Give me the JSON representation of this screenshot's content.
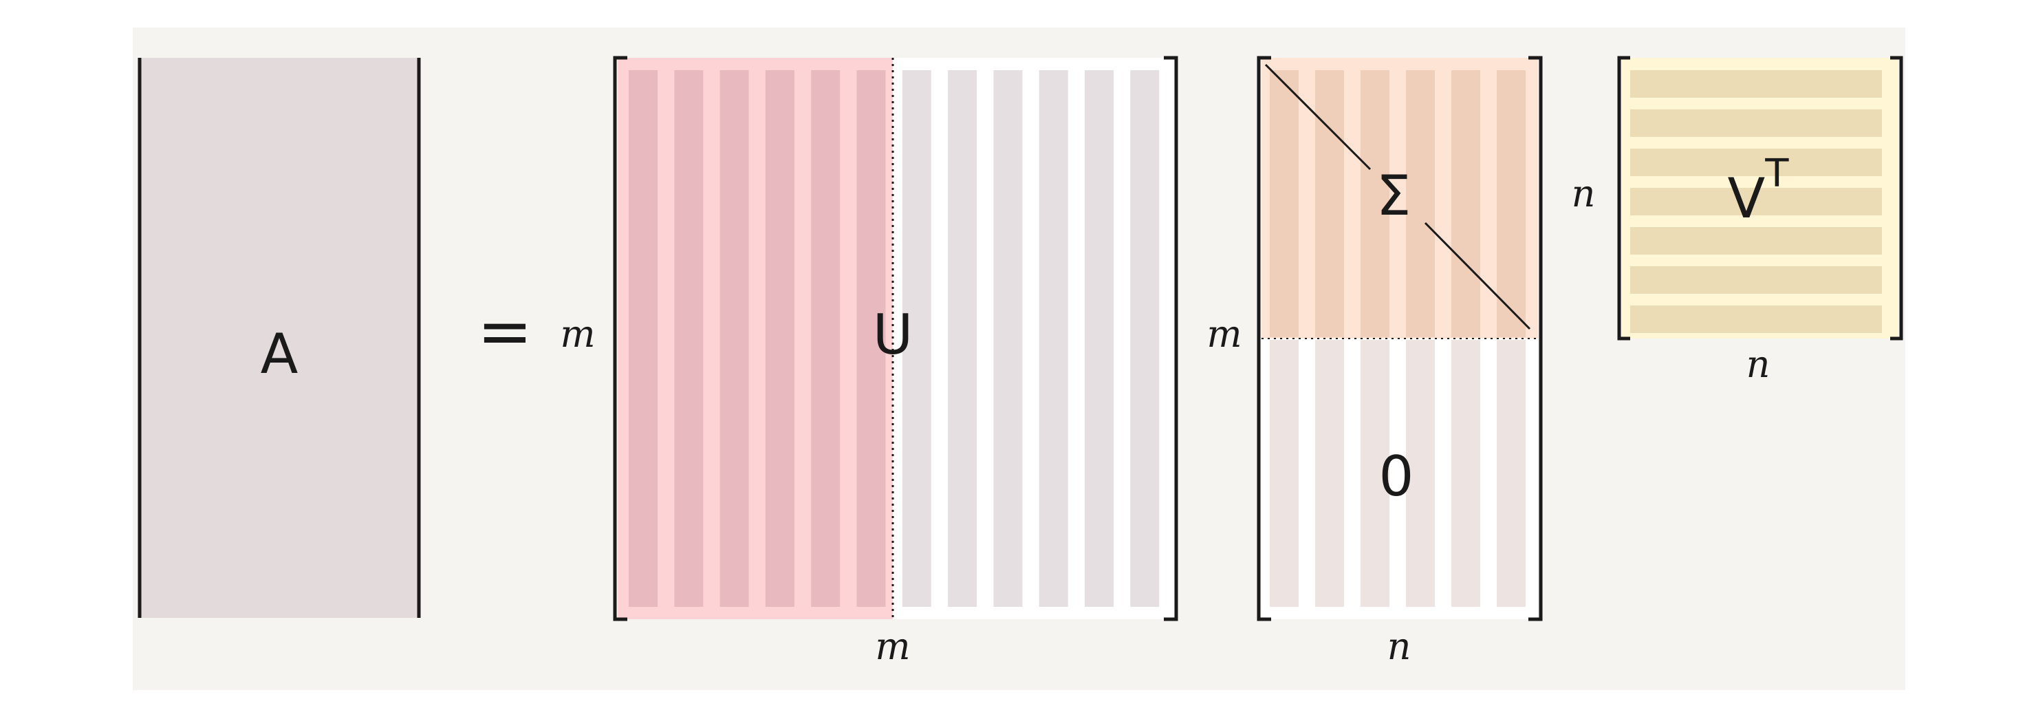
{
  "colors": {
    "background": "#f5f4f1",
    "matrix_a": "#e3dadb",
    "u_left_bg": "#fdd3d5",
    "u_left_stripe": "#e8babf",
    "u_right_bg": "#ffffff",
    "u_right_stripe": "#e6dfe1",
    "sigma_top_bg": "#fde4d4",
    "sigma_top_stripe": "#f0cfba",
    "sigma_bottom_bg": "#ffffff",
    "sigma_bottom_stripe": "#ede3e0",
    "vt_bg": "#fef6d4",
    "vt_stripe": "#ecdcb5",
    "ink": "#1a1a1a"
  },
  "diagram": {
    "matrix_a": {
      "label": "A"
    },
    "equals": "=",
    "matrix_u": {
      "label": "U",
      "rows": "m",
      "cols": "m",
      "stripes": 12,
      "highlighted_stripes": 6
    },
    "matrix_sigma": {
      "label": "Σ",
      "zero_label": "0",
      "rows": "m",
      "cols": "n",
      "stripes": 6
    },
    "matrix_vt": {
      "label": "V",
      "superscript": "T",
      "rows": "n",
      "cols": "n",
      "stripes": 7
    }
  }
}
